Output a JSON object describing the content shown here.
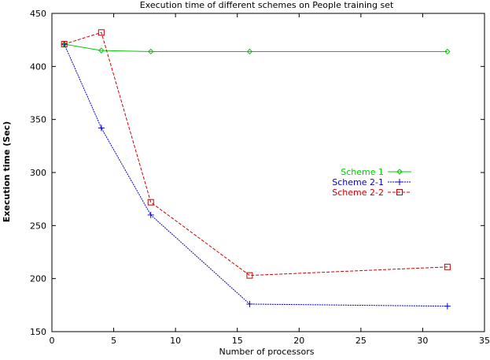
{
  "chart_data": {
    "type": "line",
    "title": "Execution time of different schemes on People training set",
    "xlabel": "Number of processors",
    "ylabel": "Execution time (Sec)",
    "xlim": [
      0,
      35
    ],
    "ylim": [
      150,
      450
    ],
    "xticks": [
      0,
      5,
      10,
      15,
      20,
      25,
      30,
      35
    ],
    "yticks": [
      150,
      200,
      250,
      300,
      350,
      400,
      450
    ],
    "grid": false,
    "legend_position": "right",
    "series": [
      {
        "name": "Scheme 1",
        "color": "#00cc00",
        "marker": "diamond",
        "dash": "solid",
        "x": [
          1,
          4,
          8,
          16,
          32
        ],
        "y": [
          421,
          415,
          414,
          414,
          414
        ]
      },
      {
        "name": "Scheme 2-1",
        "color": "#0000cc",
        "marker": "plus",
        "dash": "dashed-fine",
        "x": [
          1,
          4,
          8,
          16,
          32
        ],
        "y": [
          421,
          342,
          260,
          176,
          174
        ]
      },
      {
        "name": "Scheme 2-2",
        "color": "#cc0000",
        "marker": "square",
        "dash": "dashed",
        "x": [
          1,
          4,
          8,
          16,
          32
        ],
        "y": [
          421,
          432,
          272,
          203,
          211
        ]
      }
    ]
  }
}
